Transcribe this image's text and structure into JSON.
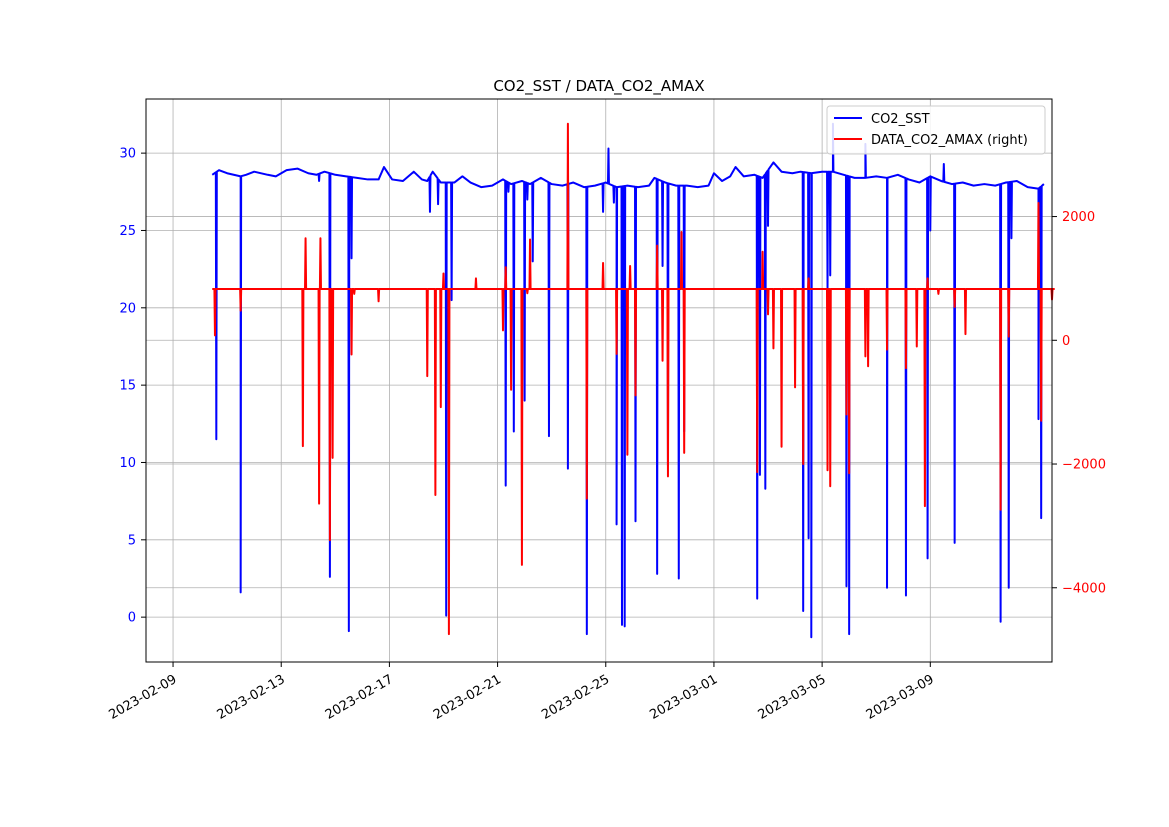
{
  "chart_data": {
    "type": "line",
    "title": "CO2_SST / DATA_CO2_AMAX",
    "xlabel": "",
    "ylabel": "",
    "x_tick_labels": [
      "2023-02-09",
      "2023-02-13",
      "2023-02-17",
      "2023-02-21",
      "2023-02-25",
      "2023-03-01",
      "2023-03-05",
      "2023-03-09"
    ],
    "x_range": [
      "2023-02-08T00:00",
      "2023-03-13T12:00"
    ],
    "y_left": {
      "ticks": [
        0,
        5,
        10,
        15,
        20,
        25,
        30
      ],
      "ylim": [
        -2.9,
        33.5
      ],
      "color": "#0000ff"
    },
    "y_right": {
      "ticks": [
        -4000,
        -2000,
        0,
        2000
      ],
      "labels": [
        "−4000",
        "−2000",
        "0",
        "2000"
      ],
      "ylim": [
        -5200,
        3900
      ],
      "color": "#ff0000"
    },
    "grid": true,
    "legend": {
      "placement": "top-right",
      "entries": [
        "CO2_SST",
        "DATA_CO2_AMAX (right)"
      ]
    },
    "series": [
      {
        "name": "CO2_SST",
        "axis": "left",
        "color": "#0000ff",
        "baseline": [
          [
            9.45,
            28.6
          ],
          [
            9.7,
            28.9
          ],
          [
            10.0,
            28.7
          ],
          [
            10.5,
            28.5
          ],
          [
            10.7,
            28.6
          ],
          [
            11.0,
            28.8
          ],
          [
            11.5,
            28.6
          ],
          [
            11.8,
            28.5
          ],
          [
            12.2,
            28.9
          ],
          [
            12.6,
            29.0
          ],
          [
            13.0,
            28.7
          ],
          [
            13.3,
            28.6
          ],
          [
            13.6,
            28.8
          ],
          [
            14.0,
            28.6
          ],
          [
            14.4,
            28.5
          ],
          [
            14.8,
            28.4
          ],
          [
            15.2,
            28.3
          ],
          [
            15.6,
            28.3
          ],
          [
            15.8,
            29.1
          ],
          [
            16.1,
            28.3
          ],
          [
            16.5,
            28.2
          ],
          [
            16.9,
            28.8
          ],
          [
            17.2,
            28.3
          ],
          [
            17.4,
            28.2
          ],
          [
            17.6,
            28.8
          ],
          [
            17.9,
            28.1
          ],
          [
            18.4,
            28.1
          ],
          [
            18.7,
            28.5
          ],
          [
            19.0,
            28.1
          ],
          [
            19.4,
            27.8
          ],
          [
            19.8,
            27.9
          ],
          [
            20.2,
            28.3
          ],
          [
            20.5,
            28.0
          ],
          [
            20.9,
            28.2
          ],
          [
            21.2,
            28.0
          ],
          [
            21.6,
            28.4
          ],
          [
            22.0,
            28.0
          ],
          [
            22.4,
            27.9
          ],
          [
            22.8,
            28.1
          ],
          [
            23.2,
            27.8
          ],
          [
            23.6,
            27.9
          ],
          [
            24.0,
            28.1
          ],
          [
            24.4,
            27.8
          ],
          [
            24.8,
            27.9
          ],
          [
            25.2,
            27.8
          ],
          [
            25.6,
            27.9
          ],
          [
            25.8,
            28.4
          ],
          [
            26.2,
            28.1
          ],
          [
            26.6,
            27.9
          ],
          [
            27.0,
            27.9
          ],
          [
            27.4,
            27.8
          ],
          [
            27.8,
            27.9
          ],
          [
            28.0,
            28.7
          ],
          [
            28.3,
            28.2
          ],
          [
            28.6,
            28.5
          ],
          [
            28.8,
            29.1
          ],
          [
            29.1,
            28.5
          ],
          [
            29.5,
            28.6
          ],
          [
            29.8,
            28.4
          ],
          [
            30.2,
            29.4
          ],
          [
            30.5,
            28.8
          ],
          [
            30.9,
            28.7
          ],
          [
            31.2,
            28.8
          ],
          [
            31.6,
            28.7
          ],
          [
            32.0,
            28.8
          ],
          [
            32.4,
            28.8
          ],
          [
            32.8,
            28.6
          ],
          [
            33.2,
            28.4
          ],
          [
            33.6,
            28.4
          ],
          [
            34.0,
            28.5
          ],
          [
            34.4,
            28.4
          ],
          [
            34.8,
            28.6
          ],
          [
            35.2,
            28.3
          ],
          [
            35.6,
            28.1
          ],
          [
            36.0,
            28.5
          ],
          [
            36.4,
            28.2
          ],
          [
            36.8,
            28.0
          ],
          [
            37.2,
            28.1
          ],
          [
            37.6,
            27.9
          ],
          [
            38.0,
            28.0
          ],
          [
            38.4,
            27.9
          ],
          [
            38.8,
            28.1
          ],
          [
            39.2,
            28.2
          ],
          [
            39.6,
            27.8
          ],
          [
            40.0,
            27.7
          ],
          [
            40.2,
            28.0
          ]
        ],
        "spikes": [
          [
            9.6,
            11.5
          ],
          [
            10.5,
            1.6
          ],
          [
            13.4,
            28.2
          ],
          [
            13.8,
            2.6
          ],
          [
            14.5,
            -0.9
          ],
          [
            14.6,
            23.2
          ],
          [
            17.5,
            26.2
          ],
          [
            17.8,
            26.7
          ],
          [
            18.1,
            0.1
          ],
          [
            18.3,
            20.5
          ],
          [
            20.3,
            8.5
          ],
          [
            20.6,
            12.0
          ],
          [
            20.4,
            27.5
          ],
          [
            21.0,
            14.0
          ],
          [
            21.1,
            27.0
          ],
          [
            21.3,
            23.0
          ],
          [
            21.9,
            11.7
          ],
          [
            22.6,
            9.6
          ],
          [
            23.3,
            -1.1
          ],
          [
            23.9,
            26.2
          ],
          [
            24.1,
            30.3
          ],
          [
            24.3,
            26.8
          ],
          [
            24.4,
            6.0
          ],
          [
            24.6,
            -0.5
          ],
          [
            24.7,
            -0.6
          ],
          [
            25.1,
            6.2
          ],
          [
            25.9,
            2.8
          ],
          [
            26.1,
            22.7
          ],
          [
            26.3,
            9.8
          ],
          [
            26.7,
            2.5
          ],
          [
            26.9,
            12.0
          ],
          [
            29.6,
            1.2
          ],
          [
            29.7,
            9.2
          ],
          [
            29.9,
            8.3
          ],
          [
            30.0,
            25.3
          ],
          [
            31.3,
            0.4
          ],
          [
            31.5,
            5.1
          ],
          [
            31.6,
            -1.3
          ],
          [
            32.2,
            21.3
          ],
          [
            32.3,
            22.1
          ],
          [
            32.4,
            31.9
          ],
          [
            32.9,
            2.0
          ],
          [
            33.0,
            -1.1
          ],
          [
            33.6,
            30.6
          ],
          [
            34.4,
            1.9
          ],
          [
            35.1,
            1.4
          ],
          [
            35.9,
            3.8
          ],
          [
            36.0,
            25.0
          ],
          [
            36.5,
            29.3
          ],
          [
            36.9,
            4.8
          ],
          [
            38.6,
            -0.3
          ],
          [
            38.9,
            1.9
          ],
          [
            39.0,
            24.5
          ],
          [
            40.0,
            12.8
          ],
          [
            40.1,
            6.4
          ]
        ]
      },
      {
        "name": "DATA_CO2_AMAX (right)",
        "axis": "right",
        "color": "#ff0000",
        "baseline_value": 830,
        "x_span": [
          9.45,
          40.6
        ],
        "spikes": [
          [
            9.55,
            80
          ],
          [
            10.5,
            480
          ],
          [
            12.8,
            -1710
          ],
          [
            12.9,
            1650
          ],
          [
            13.4,
            -2640
          ],
          [
            13.45,
            1650
          ],
          [
            13.8,
            -3230
          ],
          [
            13.9,
            -1900
          ],
          [
            14.6,
            -230
          ],
          [
            14.7,
            750
          ],
          [
            15.6,
            630
          ],
          [
            17.4,
            -580
          ],
          [
            17.7,
            -2500
          ],
          [
            17.9,
            -1080
          ],
          [
            18.0,
            1080
          ],
          [
            18.2,
            -4750
          ],
          [
            19.2,
            1000
          ],
          [
            20.2,
            160
          ],
          [
            20.3,
            1180
          ],
          [
            20.5,
            -800
          ],
          [
            20.9,
            -3630
          ],
          [
            21.1,
            760
          ],
          [
            21.2,
            1630
          ],
          [
            22.6,
            3500
          ],
          [
            23.3,
            -2560
          ],
          [
            23.9,
            1250
          ],
          [
            24.4,
            -220
          ],
          [
            24.8,
            -1850
          ],
          [
            24.9,
            1200
          ],
          [
            25.1,
            -890
          ],
          [
            25.9,
            1530
          ],
          [
            26.1,
            -330
          ],
          [
            26.3,
            -2200
          ],
          [
            26.8,
            1750
          ],
          [
            26.9,
            -1820
          ],
          [
            29.6,
            -2130
          ],
          [
            29.8,
            1430
          ],
          [
            30.0,
            420
          ],
          [
            30.2,
            -130
          ],
          [
            30.5,
            -1720
          ],
          [
            31.0,
            -760
          ],
          [
            31.3,
            -2000
          ],
          [
            31.5,
            1000
          ],
          [
            32.2,
            -2100
          ],
          [
            32.3,
            -2360
          ],
          [
            32.9,
            -1200
          ],
          [
            33.0,
            -2150
          ],
          [
            33.6,
            -260
          ],
          [
            33.7,
            -420
          ],
          [
            34.4,
            -150
          ],
          [
            35.1,
            -450
          ],
          [
            35.5,
            -100
          ],
          [
            35.8,
            -2680
          ],
          [
            35.9,
            1000
          ],
          [
            36.3,
            750
          ],
          [
            36.9,
            540
          ],
          [
            37.3,
            100
          ],
          [
            38.6,
            -2740
          ],
          [
            38.9,
            60
          ],
          [
            40.0,
            2220
          ],
          [
            40.1,
            -1300
          ],
          [
            40.5,
            660
          ]
        ]
      }
    ]
  }
}
